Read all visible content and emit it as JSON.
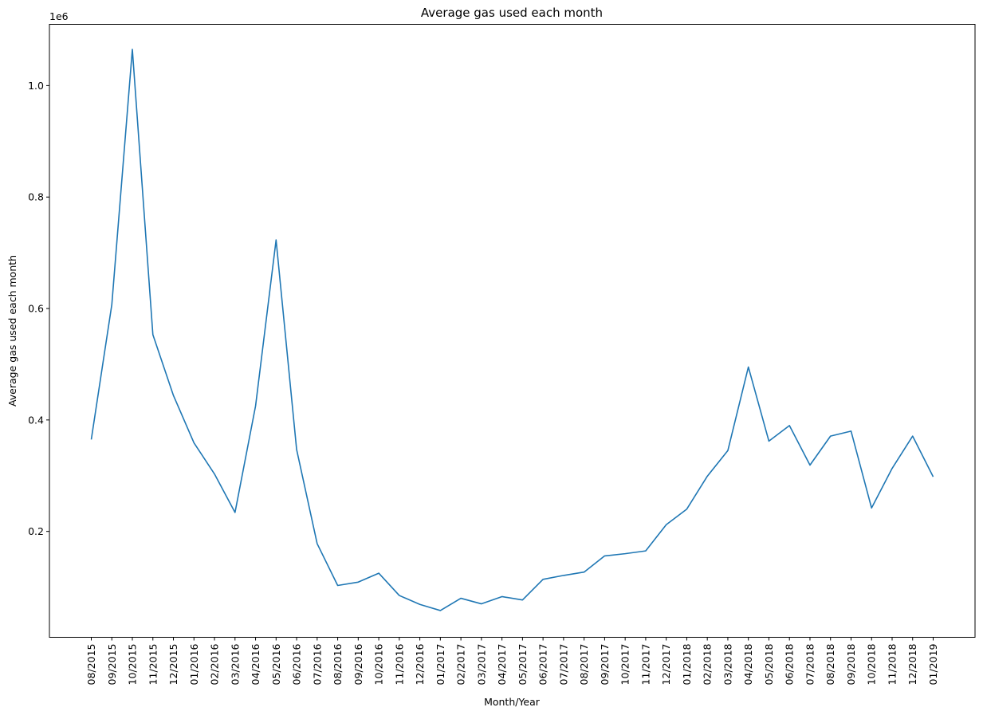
{
  "chart_data": {
    "type": "line",
    "title": "Average gas used each month",
    "xlabel": "Month/Year",
    "ylabel": "Average gas used each month",
    "y_offset_label": "1e6",
    "ylim": [
      0.01,
      1.11
    ],
    "yticks": [
      {
        "value": 0.2,
        "label": "0.2"
      },
      {
        "value": 0.4,
        "label": "0.4"
      },
      {
        "value": 0.6,
        "label": "0.6"
      },
      {
        "value": 0.8,
        "label": "0.8"
      },
      {
        "value": 1.0,
        "label": "1.0"
      }
    ],
    "grid": false,
    "legend": "none",
    "line_color": "#1f77b4",
    "categories": [
      "08/2015",
      "09/2015",
      "10/2015",
      "11/2015",
      "12/2015",
      "01/2016",
      "02/2016",
      "03/2016",
      "04/2016",
      "05/2016",
      "06/2016",
      "07/2016",
      "08/2016",
      "09/2016",
      "10/2016",
      "11/2016",
      "12/2016",
      "01/2017",
      "02/2017",
      "03/2017",
      "04/2017",
      "05/2017",
      "06/2017",
      "07/2017",
      "08/2017",
      "09/2017",
      "10/2017",
      "11/2017",
      "12/2017",
      "01/2018",
      "02/2018",
      "03/2018",
      "04/2018",
      "05/2018",
      "06/2018",
      "07/2018",
      "08/2018",
      "09/2018",
      "10/2018",
      "11/2018",
      "12/2018",
      "01/2019"
    ],
    "series": [
      {
        "values": [
          0.365,
          0.607,
          1.065,
          0.553,
          0.444,
          0.359,
          0.303,
          0.234,
          0.425,
          0.723,
          0.347,
          0.178,
          0.103,
          0.109,
          0.125,
          0.085,
          0.069,
          0.058,
          0.08,
          0.07,
          0.083,
          0.077,
          0.114,
          0.121,
          0.127,
          0.156,
          0.16,
          0.165,
          0.212,
          0.24,
          0.299,
          0.345,
          0.495,
          0.362,
          0.39,
          0.319,
          0.371,
          0.38,
          0.242,
          0.313,
          0.371,
          0.298
        ]
      }
    ]
  }
}
